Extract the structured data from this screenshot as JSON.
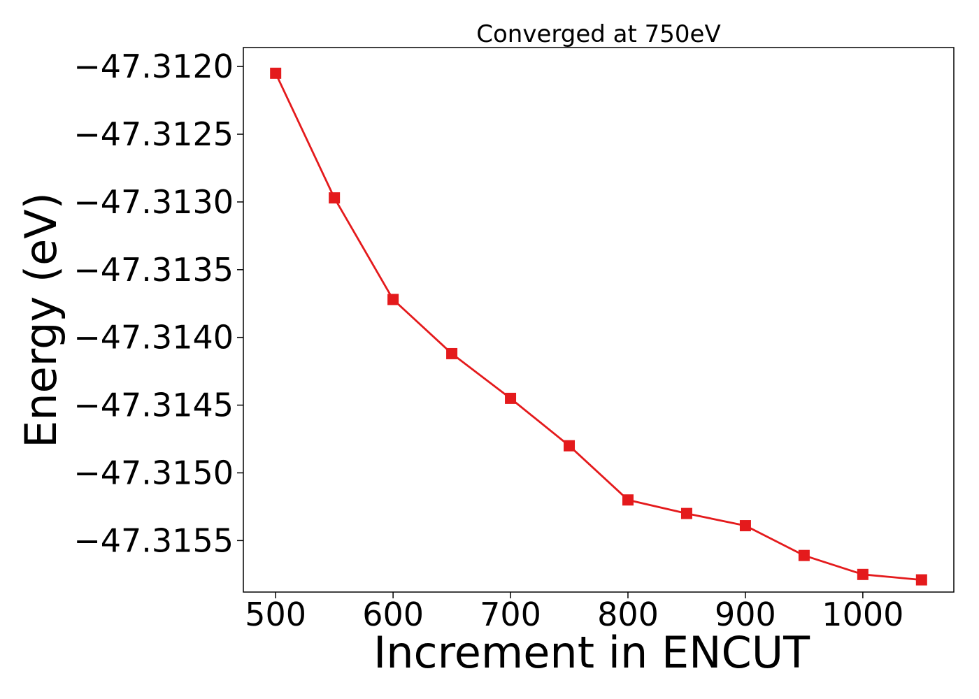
{
  "chart_data": {
    "type": "line",
    "title": "Converged at 750eV",
    "xlabel": "Increment in ENCUT",
    "ylabel": "Energy (eV)",
    "x": [
      500,
      550,
      600,
      650,
      700,
      750,
      800,
      850,
      900,
      950,
      1000,
      1050
    ],
    "series": [
      {
        "values": [
          -47.31205,
          -47.31297,
          -47.31372,
          -47.31412,
          -47.31445,
          -47.3148,
          -47.3152,
          -47.3153,
          -47.31539,
          -47.31561,
          -47.31575,
          -47.31579
        ],
        "color": "#e41a1c",
        "marker": "square"
      }
    ],
    "xlim": [
      472.5,
      1077.5
    ],
    "ylim": [
      -47.31588,
      -47.31186
    ],
    "xticks": [
      500,
      600,
      700,
      800,
      900,
      1000
    ],
    "xtick_labels": [
      "500",
      "600",
      "700",
      "800",
      "900",
      "1000"
    ],
    "yticks": [
      -47.312,
      -47.3125,
      -47.313,
      -47.3135,
      -47.314,
      -47.3145,
      -47.315,
      -47.3155
    ],
    "ytick_labels": [
      "−47.3120",
      "−47.3125",
      "−47.3130",
      "−47.3135",
      "−47.3140",
      "−47.3145",
      "−47.3150",
      "−47.3155"
    ],
    "grid": false
  }
}
